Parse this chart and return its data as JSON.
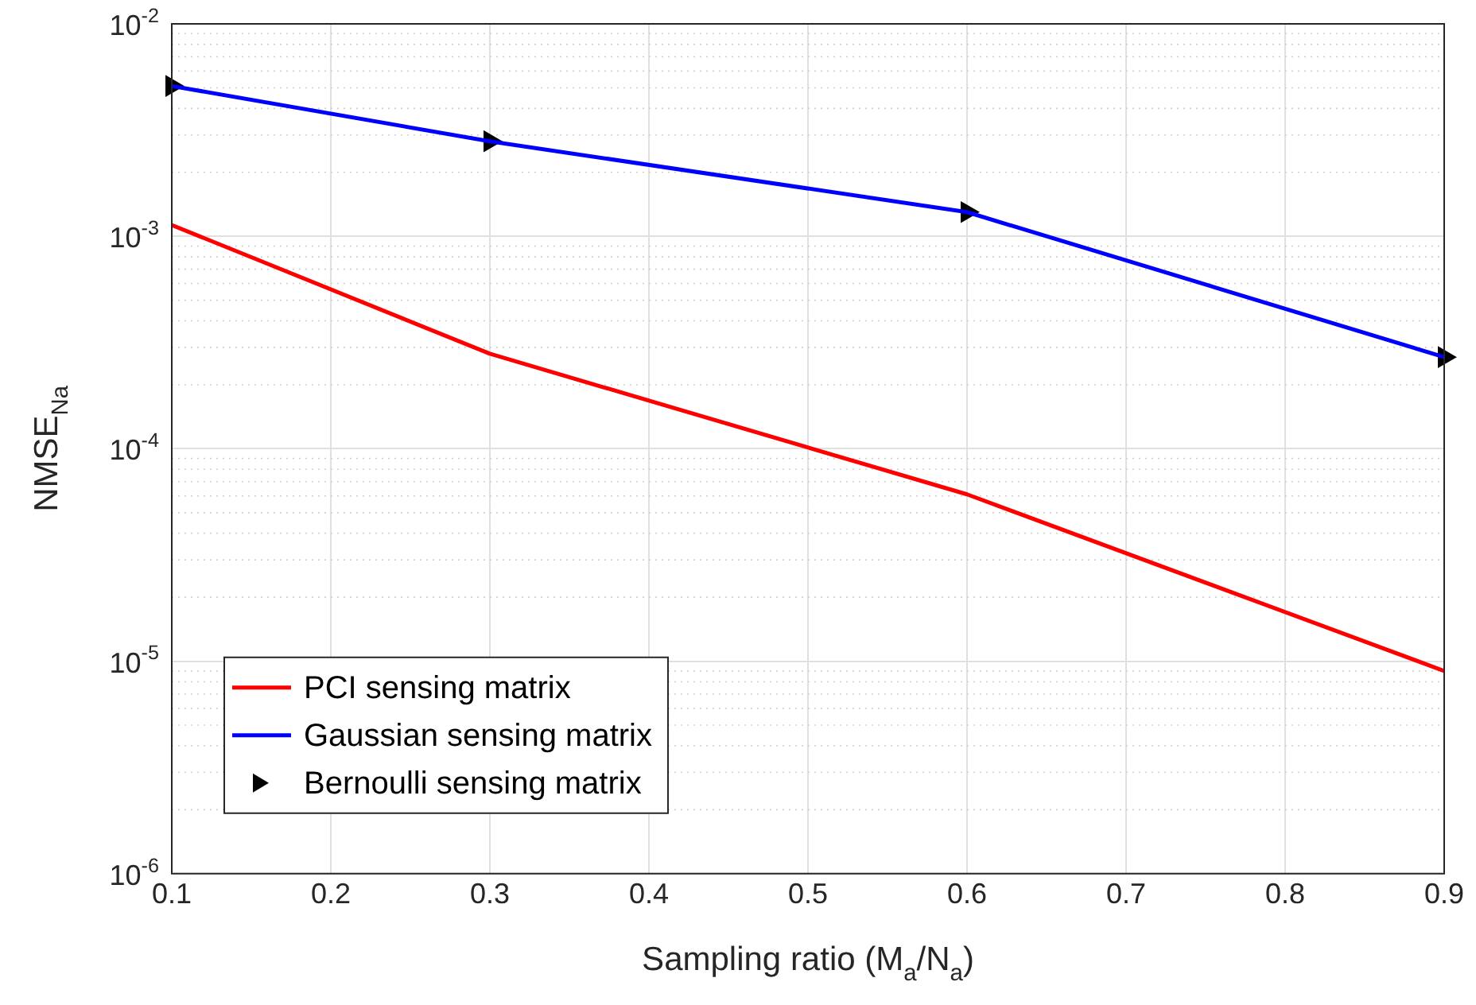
{
  "chart_data": {
    "type": "line",
    "xlabel": "Sampling ratio (M$_{a}$/N$_{a}$)",
    "ylabel": "NMSE$_{N}$$_{a}$",
    "x": [
      0.1,
      0.3,
      0.6,
      0.9
    ],
    "series": [
      {
        "name": "PCI sensing matrix",
        "color": "#ff0000",
        "values": [
          0.00113,
          0.00028,
          6.1e-05,
          9e-06
        ],
        "marker": "none"
      },
      {
        "name": "Gaussian sensing matrix",
        "color": "#0000ff",
        "values": [
          0.0051,
          0.0028,
          0.0013,
          0.00027
        ],
        "marker": "none"
      },
      {
        "name": "Bernoulli sensing matrix",
        "type": "scatter",
        "color": "#000000",
        "values": [
          0.0051,
          0.0028,
          0.0013,
          0.00027
        ],
        "marker": "triangle"
      }
    ],
    "xlim": [
      0.1,
      0.9
    ],
    "xticks": [
      0.1,
      0.2,
      0.3,
      0.4,
      0.5,
      0.6,
      0.7,
      0.8,
      0.9
    ],
    "ylim": [
      1e-06,
      0.01
    ],
    "yticks": [
      {
        "value": 1e-06,
        "label": "10$^{-6}$"
      },
      {
        "value": 1e-05,
        "label": "10$^{-5}$"
      },
      {
        "value": 0.0001,
        "label": "10$^{-4}$"
      },
      {
        "value": 0.001,
        "label": "10$^{-3}$"
      },
      {
        "value": 0.01,
        "label": "10$^{-2}$"
      }
    ],
    "log": "y",
    "grid": true,
    "legend": "bottom left",
    "line_style": "solid"
  }
}
